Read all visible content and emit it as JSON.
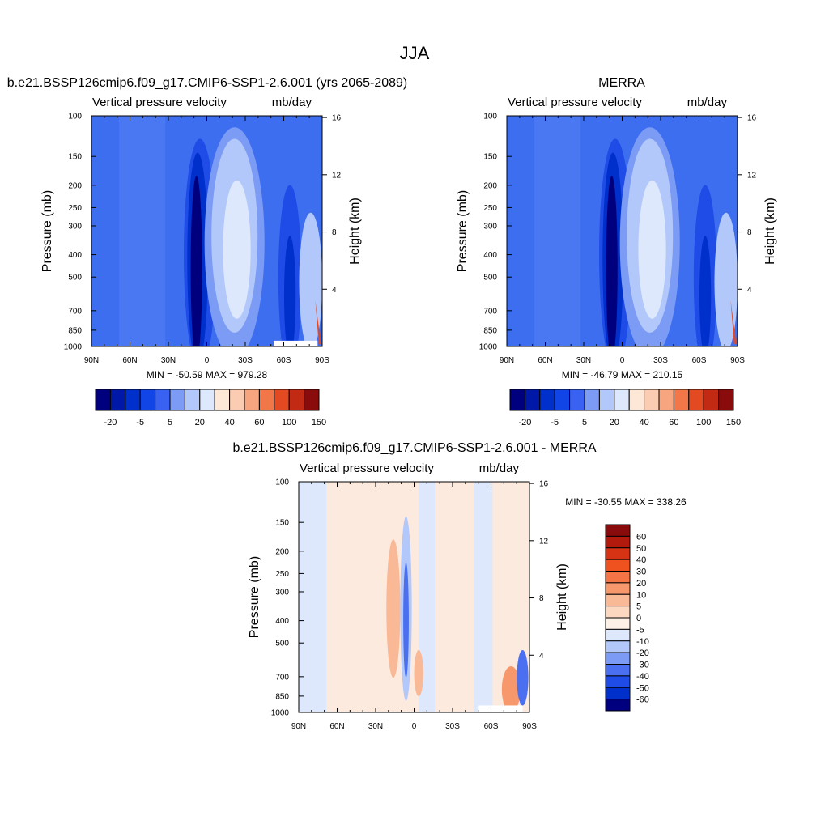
{
  "figure": {
    "title": "JJA"
  },
  "chart_data": [
    {
      "type": "heatmap",
      "title": "b.e21.BSSP126cmip6.f09_g17.CMIP6-SSP1-2.6.001 (yrs 2065-2089)",
      "left_subtitle": "Vertical pressure velocity",
      "right_subtitle": "mb/day",
      "ylabel": "Pressure (mb)",
      "ylabel_right": "Height (km)",
      "y_ticks": [
        "100",
        "150",
        "200",
        "250",
        "300",
        "400",
        "500",
        "700",
        "850",
        "1000"
      ],
      "y_right_ticks": [
        "16",
        "12",
        "8",
        "4"
      ],
      "x_ticks": [
        "90N",
        "60N",
        "30N",
        "0",
        "30S",
        "60S",
        "90S"
      ],
      "stats": "MIN = -50.59  MAX = 979.28",
      "colorbar": {
        "orientation": "horizontal",
        "labels": [
          "-20",
          "-5",
          "5",
          "20",
          "40",
          "60",
          "100",
          "150"
        ],
        "colors": [
          "#00007f",
          "#0018a8",
          "#0030cc",
          "#1245e6",
          "#3a62f2",
          "#7b9bf5",
          "#b3c8fa",
          "#dde8fc",
          "#fde8d8",
          "#fbcbb2",
          "#f7a57e",
          "#f17748",
          "#e44a22",
          "#c32a14",
          "#8a0b0b"
        ]
      }
    },
    {
      "type": "heatmap",
      "title": "MERRA",
      "left_subtitle": "Vertical pressure velocity",
      "right_subtitle": "mb/day",
      "ylabel": "Pressure (mb)",
      "ylabel_right": "Height (km)",
      "y_ticks": [
        "100",
        "150",
        "200",
        "250",
        "300",
        "400",
        "500",
        "700",
        "850",
        "1000"
      ],
      "y_right_ticks": [
        "16",
        "12",
        "8",
        "4"
      ],
      "x_ticks": [
        "90N",
        "60N",
        "30N",
        "0",
        "30S",
        "60S",
        "90S"
      ],
      "stats": "MIN = -46.79  MAX = 210.15",
      "colorbar": {
        "orientation": "horizontal",
        "labels": [
          "-20",
          "-5",
          "5",
          "20",
          "40",
          "60",
          "100",
          "150"
        ],
        "colors": [
          "#00007f",
          "#0018a8",
          "#0030cc",
          "#1245e6",
          "#3a62f2",
          "#7b9bf5",
          "#b3c8fa",
          "#dde8fc",
          "#fde8d8",
          "#fbcbb2",
          "#f7a57e",
          "#f17748",
          "#e44a22",
          "#c32a14",
          "#8a0b0b"
        ]
      }
    },
    {
      "type": "heatmap",
      "title": "b.e21.BSSP126cmip6.f09_g17.CMIP6-SSP1-2.6.001 - MERRA",
      "left_subtitle": "Vertical pressure velocity",
      "right_subtitle": "mb/day",
      "ylabel": "Pressure (mb)",
      "ylabel_right": "Height (km)",
      "y_ticks": [
        "100",
        "150",
        "200",
        "250",
        "300",
        "400",
        "500",
        "700",
        "850",
        "1000"
      ],
      "y_right_ticks": [
        "16",
        "12",
        "8",
        "4"
      ],
      "x_ticks": [
        "90N",
        "60N",
        "30N",
        "0",
        "30S",
        "60S",
        "90S"
      ],
      "stats": "MIN = -30.55  MAX = 338.26",
      "colorbar": {
        "orientation": "vertical",
        "labels": [
          "60",
          "50",
          "40",
          "30",
          "20",
          "10",
          "5",
          "0",
          "-5",
          "-10",
          "-20",
          "-30",
          "-40",
          "-50",
          "-60"
        ],
        "colors": [
          "#8a0b0b",
          "#b31a0e",
          "#d63315",
          "#f0521f",
          "#f47445",
          "#f7986c",
          "#f9b896",
          "#fdd8c0",
          "#fdf0e6",
          "#dde8fc",
          "#b3c8fa",
          "#7b9bf5",
          "#4a6ff0",
          "#1f4be6",
          "#0030cc",
          "#00007f"
        ]
      }
    }
  ]
}
